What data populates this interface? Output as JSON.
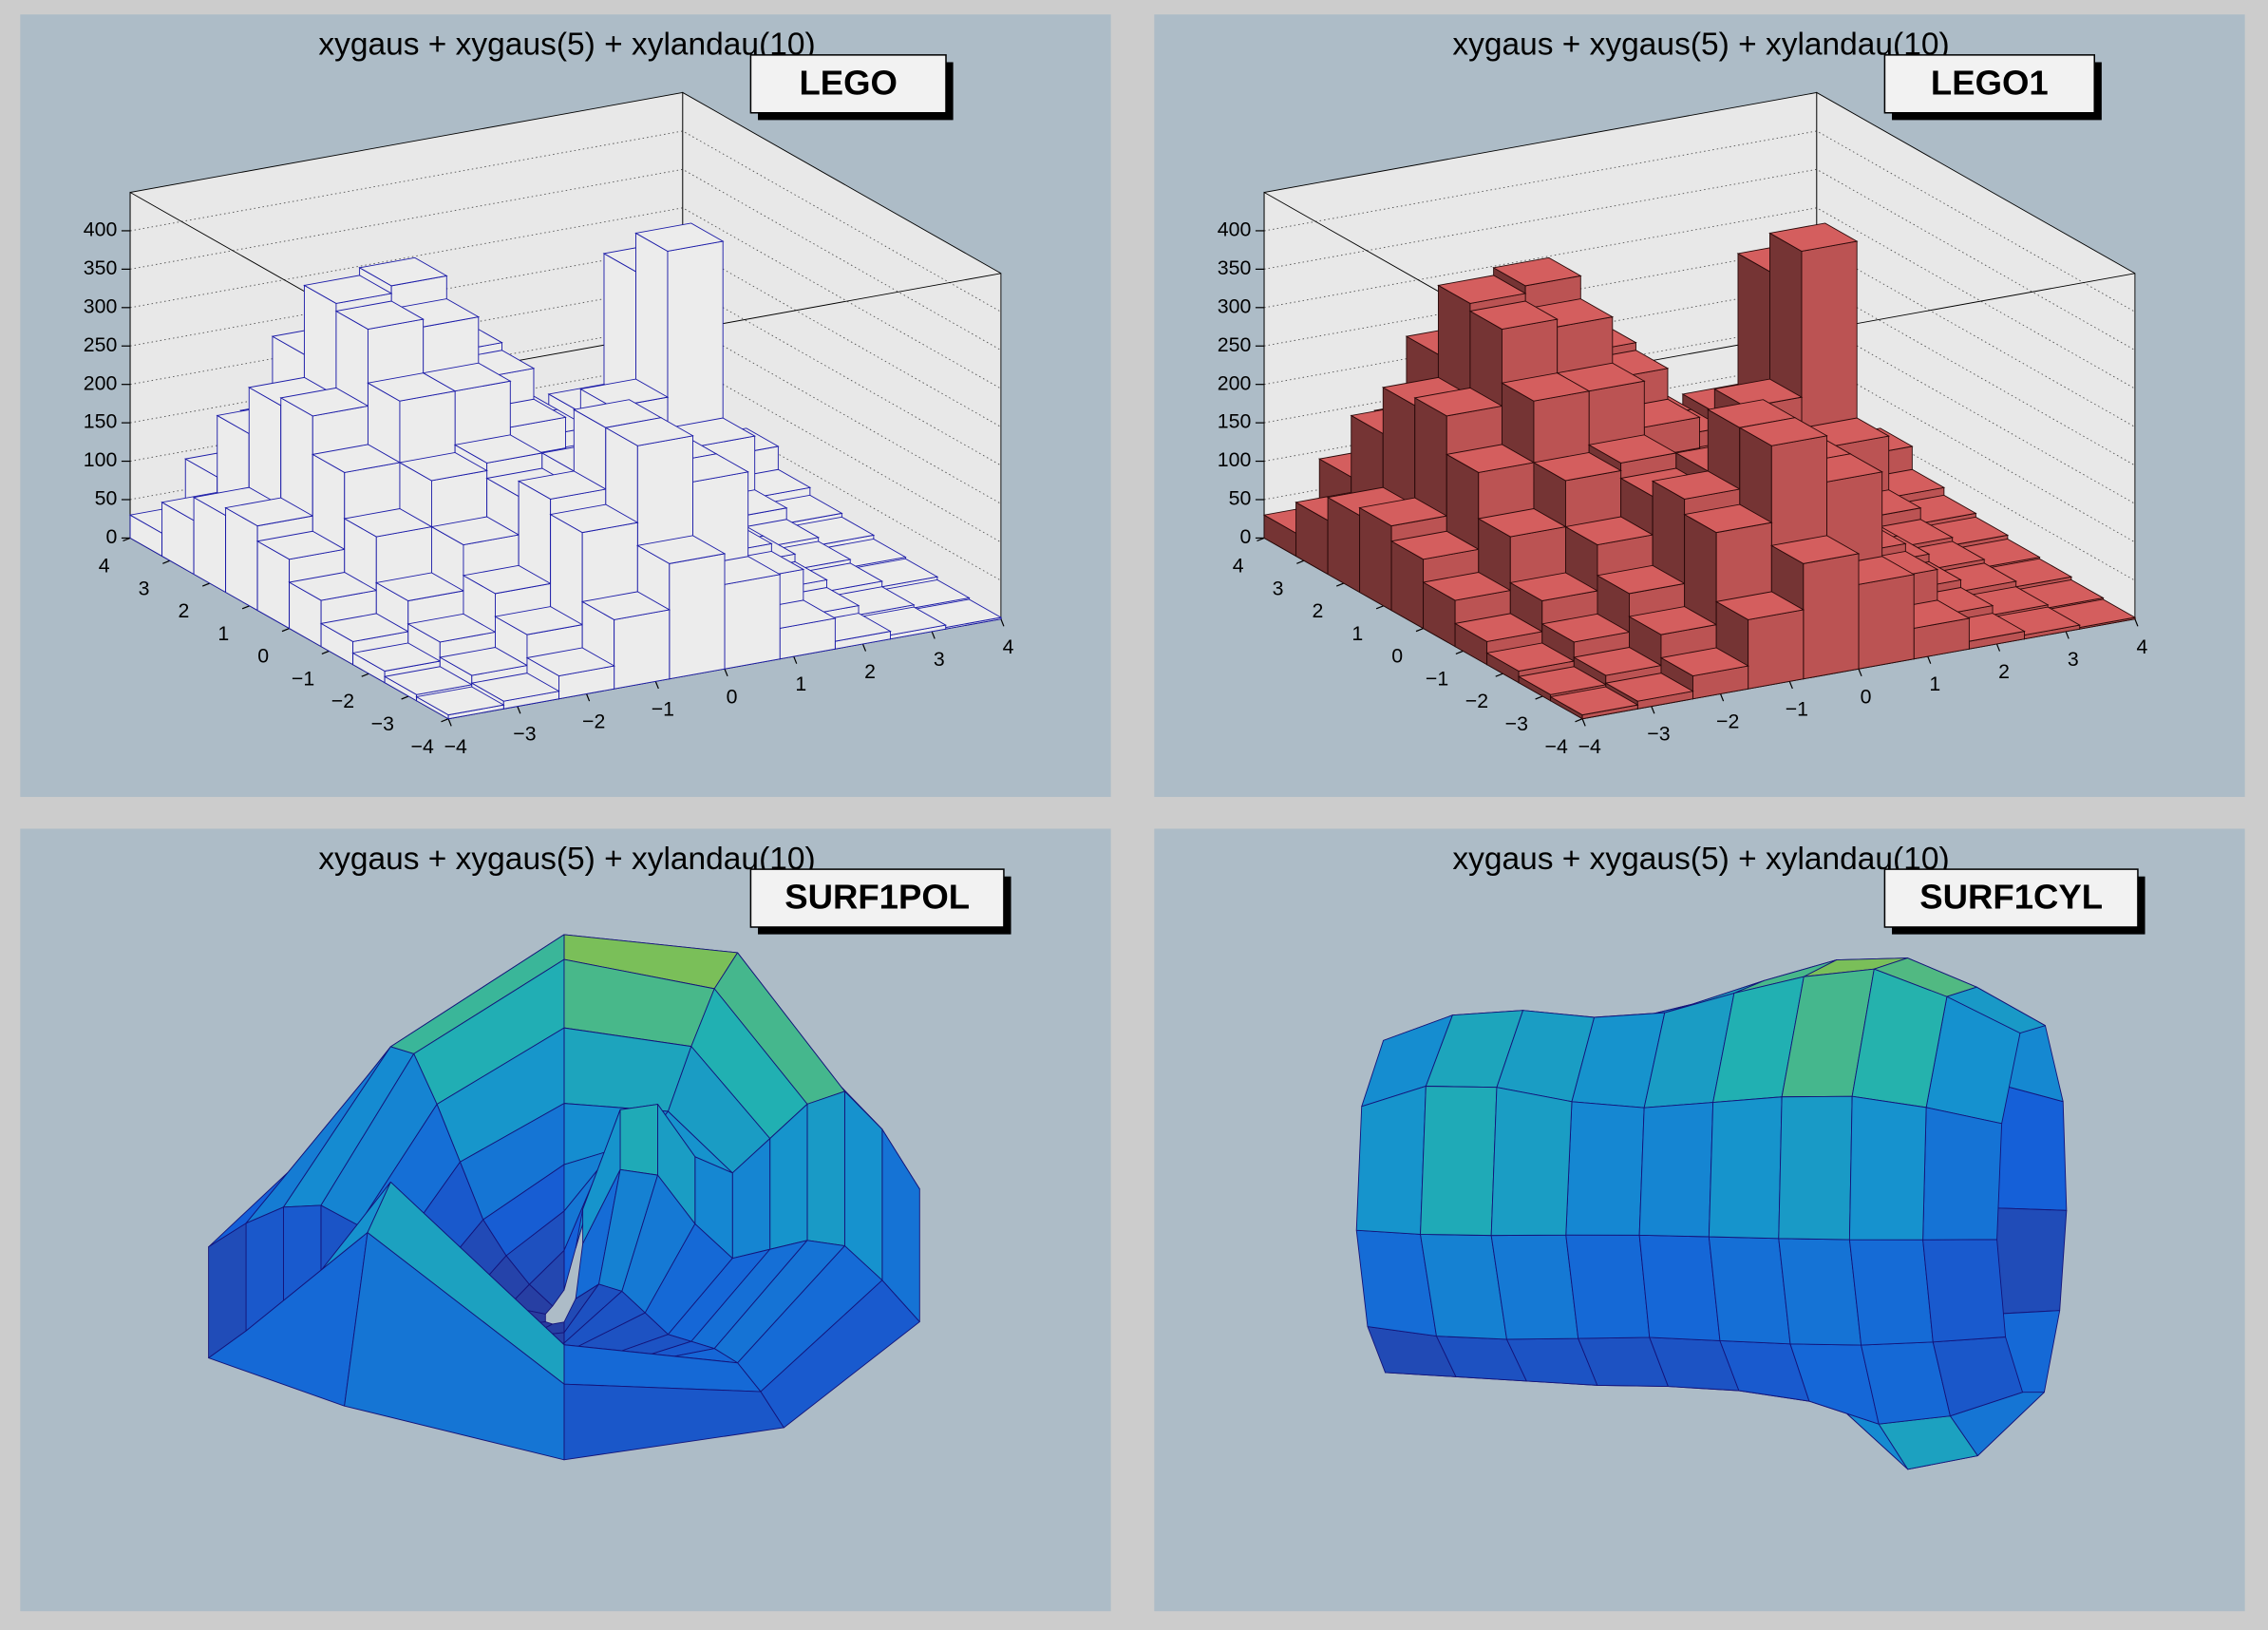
{
  "chart_data": [
    {
      "type": "lego",
      "title": "xygaus + xygaus(5) + xylandau(10)",
      "option": "LEGO",
      "xlim": [
        -4,
        4
      ],
      "ylim": [
        -4,
        4
      ],
      "zlim": [
        0,
        450
      ],
      "xticks": [
        {
          "value": -4,
          "label": "−4"
        },
        {
          "value": -3,
          "label": "−3"
        },
        {
          "value": -2,
          "label": "−2"
        },
        {
          "value": -1,
          "label": "−1"
        },
        0,
        1,
        2,
        3,
        4
      ],
      "yticks": [
        {
          "value": -4,
          "label": "−4"
        },
        {
          "value": -3,
          "label": "−3"
        },
        {
          "value": -2,
          "label": "−2"
        },
        {
          "value": -1,
          "label": "−1"
        },
        0,
        1,
        2,
        3,
        4
      ],
      "zticks": [
        0,
        50,
        100,
        150,
        200,
        250,
        300,
        350,
        400
      ],
      "color": "#ececec",
      "edge_color": "#1c1ca8",
      "shading": false,
      "grid": true,
      "z": [
        [
          5,
          10,
          30,
          90,
          150,
          110,
          40,
          10,
          5,
          2
        ],
        [
          8,
          20,
          60,
          180,
          280,
          220,
          80,
          20,
          8,
          4
        ],
        [
          15,
          40,
          90,
          200,
          280,
          220,
          90,
          30,
          15,
          8
        ],
        [
          30,
          70,
          130,
          180,
          200,
          160,
          80,
          40,
          20,
          10
        ],
        [
          60,
          130,
          190,
          200,
          170,
          120,
          70,
          40,
          25,
          15
        ],
        [
          90,
          190,
          270,
          270,
          210,
          140,
          80,
          50,
          40,
          20
        ],
        [
          110,
          240,
          340,
          330,
          250,
          160,
          90,
          80,
          110,
          30
        ],
        [
          100,
          230,
          350,
          360,
          260,
          160,
          90,
          150,
          340,
          60
        ],
        [
          70,
          170,
          260,
          270,
          200,
          120,
          70,
          120,
          290,
          50
        ],
        [
          30,
          90,
          140,
          150,
          110,
          70,
          40,
          40,
          70,
          20
        ]
      ]
    },
    {
      "type": "lego",
      "title": "xygaus + xygaus(5) + xylandau(10)",
      "option": "LEGO1",
      "xlim": [
        -4,
        4
      ],
      "ylim": [
        -4,
        4
      ],
      "zlim": [
        0,
        450
      ],
      "xticks": [
        {
          "value": -4,
          "label": "−4"
        },
        {
          "value": -3,
          "label": "−3"
        },
        {
          "value": -2,
          "label": "−2"
        },
        {
          "value": -1,
          "label": "−1"
        },
        0,
        1,
        2,
        3,
        4
      ],
      "yticks": [
        {
          "value": -4,
          "label": "−4"
        },
        {
          "value": -3,
          "label": "−3"
        },
        {
          "value": -2,
          "label": "−2"
        },
        {
          "value": -1,
          "label": "−1"
        },
        0,
        1,
        2,
        3,
        4
      ],
      "zticks": [
        0,
        50,
        100,
        150,
        200,
        250,
        300,
        350,
        400
      ],
      "color": "#d45e5e",
      "edge_color": "#2a0a0a",
      "shading": true,
      "grid": true,
      "z": [
        [
          5,
          10,
          30,
          90,
          150,
          110,
          40,
          10,
          5,
          2
        ],
        [
          8,
          20,
          60,
          180,
          280,
          220,
          80,
          20,
          8,
          4
        ],
        [
          15,
          40,
          90,
          200,
          280,
          220,
          90,
          30,
          15,
          8
        ],
        [
          30,
          70,
          130,
          180,
          200,
          160,
          80,
          40,
          20,
          10
        ],
        [
          60,
          130,
          190,
          200,
          170,
          120,
          70,
          40,
          25,
          15
        ],
        [
          90,
          190,
          270,
          270,
          210,
          140,
          80,
          50,
          40,
          20
        ],
        [
          110,
          240,
          340,
          330,
          250,
          160,
          90,
          80,
          110,
          30
        ],
        [
          100,
          230,
          350,
          360,
          260,
          160,
          90,
          150,
          340,
          60
        ],
        [
          70,
          170,
          260,
          270,
          200,
          120,
          70,
          120,
          290,
          50
        ],
        [
          30,
          90,
          140,
          150,
          110,
          70,
          40,
          40,
          70,
          20
        ]
      ]
    },
    {
      "type": "surf1pol",
      "title": "xygaus + xygaus(5) + xylandau(10)",
      "option": "SURF1POL",
      "xlim": [
        -4,
        4
      ],
      "ylim": [
        -4,
        4
      ],
      "zlim": [
        0,
        450
      ],
      "palette": [
        "#2a3a9c",
        "#1560d8",
        "#1590d0",
        "#22b2b0",
        "#8cc248",
        "#f9d52a"
      ],
      "edge_color": "#14147a",
      "z": [
        [
          5,
          10,
          30,
          90,
          150,
          110,
          40,
          10,
          5,
          2
        ],
        [
          8,
          20,
          60,
          180,
          280,
          220,
          80,
          20,
          8,
          4
        ],
        [
          15,
          40,
          90,
          200,
          280,
          220,
          90,
          30,
          15,
          8
        ],
        [
          30,
          70,
          130,
          180,
          200,
          160,
          80,
          40,
          20,
          10
        ],
        [
          60,
          130,
          190,
          200,
          170,
          120,
          70,
          40,
          25,
          15
        ],
        [
          90,
          190,
          270,
          270,
          210,
          140,
          80,
          50,
          40,
          20
        ],
        [
          110,
          240,
          340,
          330,
          250,
          160,
          90,
          80,
          110,
          30
        ],
        [
          100,
          230,
          350,
          360,
          260,
          160,
          90,
          150,
          340,
          60
        ],
        [
          70,
          170,
          260,
          270,
          200,
          120,
          70,
          120,
          290,
          50
        ],
        [
          30,
          90,
          140,
          150,
          110,
          70,
          40,
          40,
          70,
          20
        ]
      ]
    },
    {
      "type": "surf1cyl",
      "title": "xygaus + xygaus(5) + xylandau(10)",
      "option": "SURF1CYL",
      "xlim": [
        -4,
        4
      ],
      "ylim": [
        -4,
        4
      ],
      "zlim": [
        0,
        450
      ],
      "palette": [
        "#2a3a9c",
        "#1560d8",
        "#1590d0",
        "#22b2b0",
        "#8cc248",
        "#f9d52a"
      ],
      "edge_color": "#14147a",
      "z": [
        [
          5,
          10,
          30,
          90,
          150,
          110,
          40,
          10,
          5,
          2
        ],
        [
          8,
          20,
          60,
          180,
          280,
          220,
          80,
          20,
          8,
          4
        ],
        [
          15,
          40,
          90,
          200,
          280,
          220,
          90,
          30,
          15,
          8
        ],
        [
          30,
          70,
          130,
          180,
          200,
          160,
          80,
          40,
          20,
          10
        ],
        [
          60,
          130,
          190,
          200,
          170,
          120,
          70,
          40,
          25,
          15
        ],
        [
          90,
          190,
          270,
          270,
          210,
          140,
          80,
          50,
          40,
          20
        ],
        [
          110,
          240,
          340,
          330,
          250,
          160,
          90,
          80,
          110,
          30
        ],
        [
          100,
          230,
          350,
          360,
          260,
          160,
          90,
          150,
          340,
          60
        ],
        [
          70,
          170,
          260,
          270,
          200,
          120,
          70,
          120,
          290,
          50
        ],
        [
          30,
          90,
          140,
          150,
          110,
          70,
          40,
          40,
          70,
          20
        ]
      ]
    }
  ]
}
